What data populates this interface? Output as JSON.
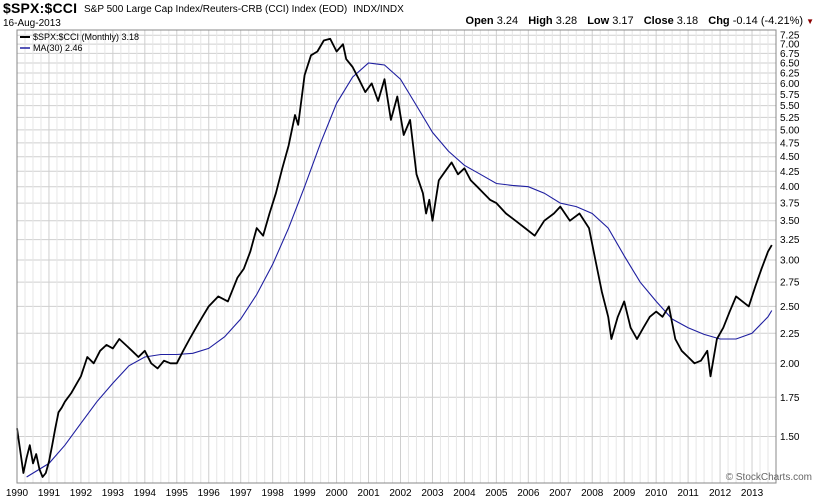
{
  "header": {
    "symbol": "$SPX:$CCI",
    "description": "S&P 500 Large Cap Index/Reuters-CRB (CCI) Index (EOD)",
    "exchange": "INDX/INDX",
    "date": "16-Aug-2013",
    "open_label": "Open",
    "open": "3.24",
    "high_label": "High",
    "high": "3.28",
    "low_label": "Low",
    "low": "3.17",
    "close_label": "Close",
    "close": "3.18",
    "chg_label": "Chg",
    "chg": "-0.14 (-4.21%)",
    "chg_arrow": "▼"
  },
  "brand": "© StockCharts.com",
  "colors": {
    "price": "#000000",
    "ma": "#1f1fa0",
    "grid": "#cfcfcf",
    "frame": "#888888",
    "down": "#8b0000"
  },
  "chart_data": {
    "type": "line",
    "title": "$SPX:$CCI S&P 500 Large Cap Index/Reuters-CRB (CCI) Index (EOD) INDX/INDX",
    "y_scale": "log",
    "ylim": [
      1.25,
      7.4
    ],
    "xlim": [
      1990.0,
      2013.75
    ],
    "grid": true,
    "legend_position": "top-left",
    "y_ticks": [
      "1.50",
      "1.75",
      "2.00",
      "2.25",
      "2.50",
      "2.75",
      "3.00",
      "3.25",
      "3.50",
      "3.75",
      "4.00",
      "4.25",
      "4.50",
      "4.75",
      "5.00",
      "5.25",
      "5.50",
      "5.75",
      "6.00",
      "6.25",
      "6.50",
      "6.75",
      "7.00",
      "7.25"
    ],
    "x_ticks": [
      "1990",
      "1991",
      "1992",
      "1993",
      "1994",
      "1995",
      "1996",
      "1997",
      "1998",
      "1999",
      "2000",
      "2001",
      "2002",
      "2003",
      "2004",
      "2005",
      "2006",
      "2007",
      "2008",
      "2009",
      "2010",
      "2011",
      "2012",
      "2013"
    ],
    "series": [
      {
        "name": "$SPX:$CCI (Monthly)",
        "legend_label": "$SPX:$CCI (Monthly) 3.18",
        "x": [
          1990.0,
          1990.1,
          1990.2,
          1990.3,
          1990.4,
          1990.5,
          1990.6,
          1990.7,
          1990.8,
          1990.9,
          1991.0,
          1991.1,
          1991.2,
          1991.3,
          1991.4,
          1991.5,
          1991.7,
          1991.9,
          1992.0,
          1992.2,
          1992.4,
          1992.6,
          1992.8,
          1993.0,
          1993.2,
          1993.4,
          1993.6,
          1993.8,
          1994.0,
          1994.2,
          1994.4,
          1994.6,
          1994.8,
          1995.0,
          1995.2,
          1995.4,
          1995.6,
          1995.8,
          1996.0,
          1996.3,
          1996.6,
          1996.9,
          1997.1,
          1997.3,
          1997.5,
          1997.7,
          1997.9,
          1998.1,
          1998.3,
          1998.5,
          1998.7,
          1998.8,
          1999.0,
          1999.2,
          1999.4,
          1999.6,
          1999.8,
          2000.0,
          2000.2,
          2000.3,
          2000.5,
          2000.7,
          2000.9,
          2001.1,
          2001.3,
          2001.5,
          2001.7,
          2001.9,
          2002.1,
          2002.3,
          2002.5,
          2002.7,
          2002.8,
          2002.9,
          2003.0,
          2003.2,
          2003.4,
          2003.6,
          2003.8,
          2004.0,
          2004.2,
          2004.4,
          2004.6,
          2004.8,
          2005.0,
          2005.3,
          2005.6,
          2005.9,
          2006.2,
          2006.5,
          2006.8,
          2007.0,
          2007.3,
          2007.6,
          2007.9,
          2008.1,
          2008.3,
          2008.5,
          2008.6,
          2008.7,
          2008.8,
          2009.0,
          2009.2,
          2009.4,
          2009.6,
          2009.8,
          2010.0,
          2010.2,
          2010.4,
          2010.6,
          2010.8,
          2011.0,
          2011.2,
          2011.4,
          2011.6,
          2011.7,
          2011.9,
          2012.1,
          2012.3,
          2012.5,
          2012.7,
          2012.9,
          2013.1,
          2013.3,
          2013.5,
          2013.62
        ],
        "values": [
          1.55,
          1.42,
          1.3,
          1.38,
          1.45,
          1.35,
          1.4,
          1.32,
          1.28,
          1.3,
          1.36,
          1.45,
          1.55,
          1.65,
          1.68,
          1.72,
          1.78,
          1.86,
          1.9,
          2.05,
          2.0,
          2.1,
          2.15,
          2.12,
          2.2,
          2.15,
          2.1,
          2.05,
          2.1,
          2.0,
          1.96,
          2.02,
          2.0,
          2.0,
          2.1,
          2.2,
          2.3,
          2.4,
          2.5,
          2.6,
          2.55,
          2.8,
          2.9,
          3.1,
          3.4,
          3.3,
          3.6,
          3.9,
          4.3,
          4.7,
          5.3,
          5.1,
          6.2,
          6.7,
          6.8,
          7.1,
          7.15,
          6.8,
          7.0,
          6.6,
          6.4,
          6.1,
          5.8,
          6.0,
          5.6,
          6.1,
          5.2,
          5.7,
          4.9,
          5.2,
          4.2,
          3.9,
          3.6,
          3.8,
          3.5,
          4.1,
          4.25,
          4.4,
          4.2,
          4.3,
          4.1,
          4.0,
          3.9,
          3.8,
          3.75,
          3.6,
          3.5,
          3.4,
          3.3,
          3.5,
          3.6,
          3.7,
          3.5,
          3.6,
          3.4,
          3.0,
          2.65,
          2.4,
          2.2,
          2.3,
          2.4,
          2.55,
          2.3,
          2.2,
          2.3,
          2.4,
          2.45,
          2.4,
          2.5,
          2.2,
          2.1,
          2.05,
          2.0,
          2.02,
          2.1,
          1.9,
          2.2,
          2.3,
          2.45,
          2.6,
          2.55,
          2.5,
          2.7,
          2.9,
          3.1,
          3.18
        ]
      },
      {
        "name": "MA(30)",
        "legend_label": "MA(30) 2.46",
        "x": [
          1990.3,
          1991.0,
          1991.5,
          1992.0,
          1992.5,
          1993.0,
          1993.5,
          1994.0,
          1994.5,
          1995.0,
          1995.5,
          1996.0,
          1996.5,
          1997.0,
          1997.5,
          1998.0,
          1998.5,
          1999.0,
          1999.5,
          2000.0,
          2000.5,
          2001.0,
          2001.5,
          2002.0,
          2002.5,
          2003.0,
          2003.5,
          2004.0,
          2004.5,
          2005.0,
          2005.5,
          2006.0,
          2006.5,
          2007.0,
          2007.5,
          2008.0,
          2008.5,
          2009.0,
          2009.5,
          2010.0,
          2010.5,
          2011.0,
          2011.5,
          2012.0,
          2012.5,
          2013.0,
          2013.5,
          2013.62
        ],
        "values": [
          1.28,
          1.35,
          1.45,
          1.58,
          1.72,
          1.85,
          1.98,
          2.05,
          2.07,
          2.07,
          2.08,
          2.12,
          2.22,
          2.38,
          2.62,
          2.95,
          3.4,
          4.0,
          4.75,
          5.55,
          6.15,
          6.5,
          6.45,
          6.1,
          5.5,
          4.95,
          4.6,
          4.35,
          4.2,
          4.05,
          4.02,
          4.0,
          3.9,
          3.75,
          3.7,
          3.6,
          3.4,
          3.05,
          2.75,
          2.55,
          2.38,
          2.3,
          2.24,
          2.2,
          2.2,
          2.25,
          2.4,
          2.46
        ]
      }
    ]
  }
}
